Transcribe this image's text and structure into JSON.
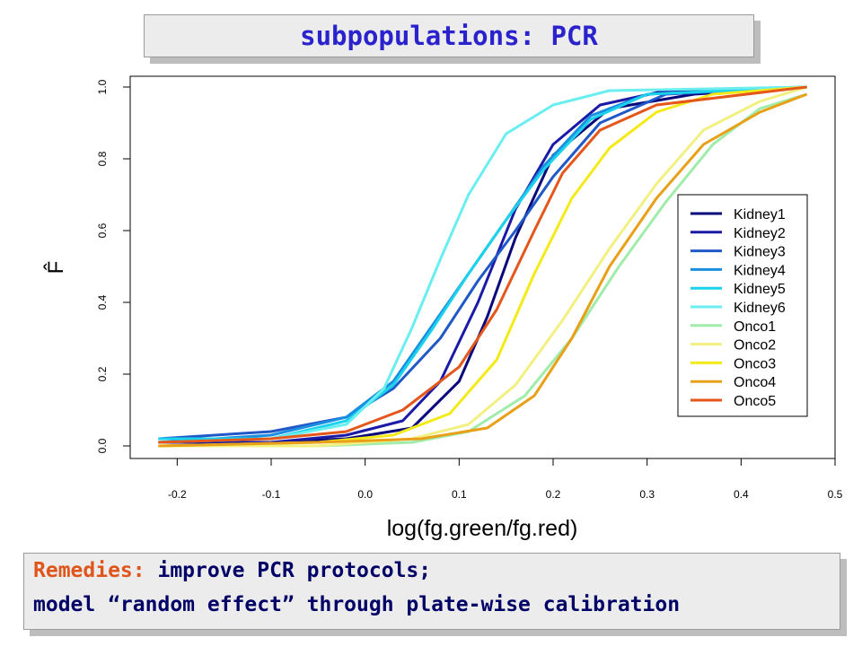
{
  "title": "subpopulations: PCR",
  "remedies": {
    "label": "Remedies:",
    "line1": "improve PCR protocols;",
    "line2": "model “random effect” through plate-wise calibration"
  },
  "colors": {
    "title_text": "#2a22cc",
    "remedies_label": "#e0561a",
    "remedies_text": "#000066",
    "banner_fill": "#ececec"
  },
  "chart_data": {
    "type": "line",
    "title": "",
    "xlabel": "log(fg.green/fg.red)",
    "ylabel": "F̂",
    "xlim": [
      -0.25,
      0.5
    ],
    "ylim": [
      0,
      1
    ],
    "x_ticks": [
      "-0.2",
      "-0.1",
      "0.0",
      "0.1",
      "0.2",
      "0.3",
      "0.4",
      "0.5"
    ],
    "y_ticks": [
      "0.0",
      "0.2",
      "0.4",
      "0.6",
      "0.8",
      "1.0"
    ],
    "grid": false,
    "legend_position": "right",
    "series": [
      {
        "name": "Kidney1",
        "color": "#08087a",
        "x": [
          -0.22,
          -0.1,
          -0.02,
          0.05,
          0.1,
          0.13,
          0.16,
          0.2,
          0.26,
          0.35,
          0.47
        ],
        "y": [
          0.01,
          0.01,
          0.02,
          0.05,
          0.18,
          0.36,
          0.58,
          0.81,
          0.94,
          0.98,
          1.0
        ]
      },
      {
        "name": "Kidney2",
        "color": "#1a1aa6",
        "x": [
          -0.22,
          -0.1,
          -0.02,
          0.04,
          0.08,
          0.12,
          0.16,
          0.2,
          0.25,
          0.32,
          0.47
        ],
        "y": [
          0.01,
          0.01,
          0.03,
          0.07,
          0.18,
          0.4,
          0.66,
          0.84,
          0.95,
          0.99,
          1.0
        ]
      },
      {
        "name": "Kidney3",
        "color": "#2058c8",
        "x": [
          -0.22,
          -0.1,
          -0.02,
          0.03,
          0.08,
          0.12,
          0.16,
          0.2,
          0.25,
          0.32,
          0.47
        ],
        "y": [
          0.02,
          0.04,
          0.08,
          0.16,
          0.3,
          0.46,
          0.6,
          0.75,
          0.9,
          0.98,
          1.0
        ]
      },
      {
        "name": "Kidney4",
        "color": "#1a8ee0",
        "x": [
          -0.22,
          -0.1,
          -0.02,
          0.03,
          0.07,
          0.11,
          0.15,
          0.19,
          0.24,
          0.3,
          0.47
        ],
        "y": [
          0.01,
          0.03,
          0.08,
          0.18,
          0.33,
          0.48,
          0.63,
          0.78,
          0.92,
          0.98,
          1.0
        ]
      },
      {
        "name": "Kidney5",
        "color": "#1ad2ec",
        "x": [
          -0.22,
          -0.1,
          -0.02,
          0.03,
          0.07,
          0.11,
          0.15,
          0.19,
          0.24,
          0.3,
          0.47
        ],
        "y": [
          0.02,
          0.02,
          0.07,
          0.17,
          0.32,
          0.48,
          0.63,
          0.77,
          0.91,
          0.98,
          1.0
        ]
      },
      {
        "name": "Kidney6",
        "color": "#6aeef0",
        "x": [
          -0.22,
          -0.1,
          -0.02,
          0.02,
          0.05,
          0.08,
          0.11,
          0.15,
          0.2,
          0.26,
          0.47
        ],
        "y": [
          0.01,
          0.02,
          0.06,
          0.16,
          0.33,
          0.52,
          0.7,
          0.87,
          0.95,
          0.99,
          1.0
        ]
      },
      {
        "name": "Onco1",
        "color": "#a0ecaa",
        "x": [
          -0.22,
          -0.05,
          0.05,
          0.11,
          0.17,
          0.22,
          0.27,
          0.32,
          0.37,
          0.42,
          0.47
        ],
        "y": [
          0.0,
          0.0,
          0.01,
          0.04,
          0.14,
          0.3,
          0.5,
          0.68,
          0.84,
          0.94,
          0.98
        ]
      },
      {
        "name": "Onco2",
        "color": "#f2f080",
        "x": [
          -0.22,
          -0.05,
          0.05,
          0.11,
          0.16,
          0.21,
          0.26,
          0.31,
          0.36,
          0.42,
          0.47
        ],
        "y": [
          0.0,
          0.0,
          0.02,
          0.06,
          0.17,
          0.35,
          0.55,
          0.73,
          0.88,
          0.96,
          1.0
        ]
      },
      {
        "name": "Onco3",
        "color": "#f4ea18",
        "x": [
          -0.22,
          -0.05,
          0.03,
          0.09,
          0.14,
          0.18,
          0.22,
          0.26,
          0.31,
          0.37,
          0.47
        ],
        "y": [
          0.0,
          0.01,
          0.03,
          0.09,
          0.24,
          0.48,
          0.69,
          0.83,
          0.93,
          0.98,
          1.0
        ]
      },
      {
        "name": "Onco4",
        "color": "#e8a018",
        "x": [
          -0.22,
          -0.05,
          0.06,
          0.13,
          0.18,
          0.22,
          0.26,
          0.31,
          0.36,
          0.42,
          0.47
        ],
        "y": [
          0.0,
          0.01,
          0.02,
          0.05,
          0.14,
          0.3,
          0.5,
          0.69,
          0.84,
          0.93,
          0.98
        ]
      },
      {
        "name": "Onco5",
        "color": "#e4561a",
        "x": [
          -0.22,
          -0.1,
          -0.02,
          0.04,
          0.1,
          0.14,
          0.18,
          0.21,
          0.25,
          0.31,
          0.47
        ],
        "y": [
          0.01,
          0.02,
          0.04,
          0.1,
          0.22,
          0.38,
          0.6,
          0.76,
          0.88,
          0.95,
          1.0
        ]
      }
    ]
  }
}
